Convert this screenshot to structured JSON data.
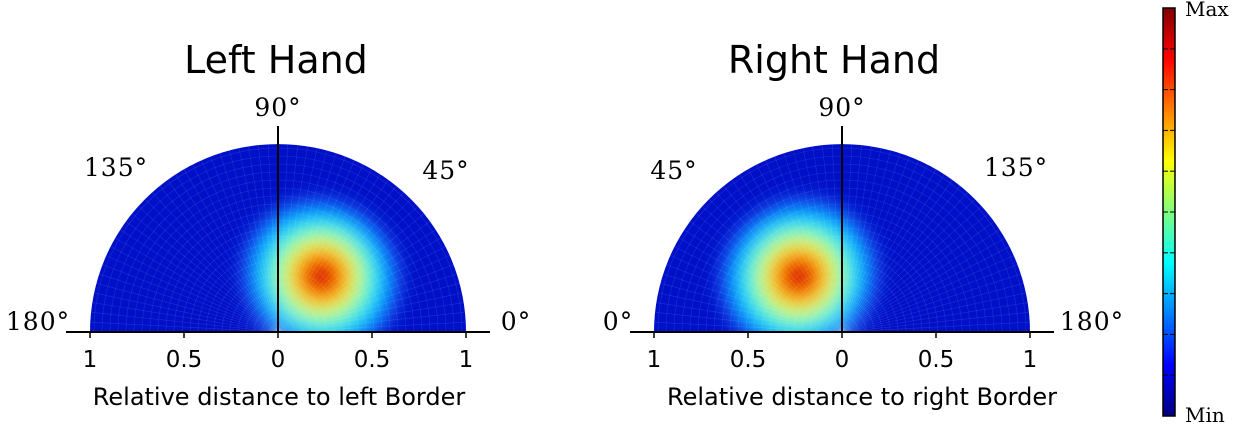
{
  "chart_data": [
    {
      "type": "heatmap",
      "subtype": "polar-half-disc",
      "title": "Left Hand",
      "xlabel": "Relative distance to left Border",
      "x_ticks": [
        "1",
        "0.5",
        "0",
        "0.5",
        "1"
      ],
      "angle_labels": [
        "180°",
        "135°",
        "90°",
        "45°",
        "0°"
      ],
      "radius_range": [
        0,
        1
      ],
      "angle_range_deg": [
        0,
        180
      ],
      "peak": {
        "radius": 0.4,
        "angle_deg": 55
      },
      "colormap": "jet"
    },
    {
      "type": "heatmap",
      "subtype": "polar-half-disc",
      "title": "Right Hand",
      "xlabel": "Relative distance to right Border",
      "x_ticks": [
        "1",
        "0.5",
        "0",
        "0.5",
        "1"
      ],
      "angle_labels": [
        "0°",
        "45°",
        "90°",
        "135°",
        "180°"
      ],
      "radius_range": [
        0,
        1
      ],
      "angle_range_deg": [
        0,
        180
      ],
      "peak": {
        "radius": 0.4,
        "angle_deg": 125
      },
      "colormap": "jet"
    }
  ],
  "colorbar": {
    "max_label": "Max",
    "min_label": "Min",
    "colormap": "jet"
  }
}
